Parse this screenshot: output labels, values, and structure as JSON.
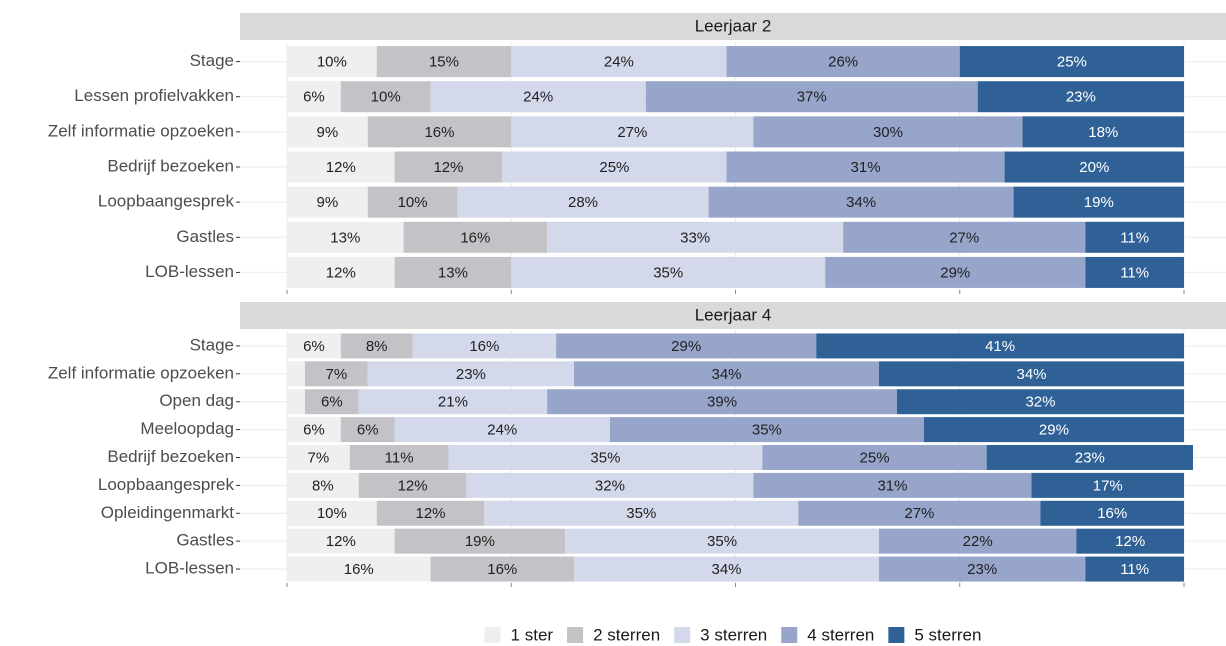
{
  "chart_data": {
    "type": "bar",
    "stacked": true,
    "orientation": "horizontal",
    "xlim": [
      0,
      100
    ],
    "xticks": [
      0,
      25,
      50,
      75,
      100
    ],
    "grid": true,
    "legend": [
      {
        "name": "1 ster",
        "color": "#efefef",
        "text_color": "#222222"
      },
      {
        "name": "2 sterren",
        "color": "#c3c2c6",
        "text_color": "#222222"
      },
      {
        "name": "3 sterren",
        "color": "#d3d9ea",
        "text_color": "#222222"
      },
      {
        "name": "4 sterren",
        "color": "#97a5ca",
        "text_color": "#222222"
      },
      {
        "name": "5 sterren",
        "color": "#2f6197",
        "text_color": "#ffffff"
      }
    ],
    "panels": [
      {
        "title": "Leerjaar 2",
        "categories": [
          "Stage",
          "Lessen profielvakken",
          "Zelf informatie opzoeken",
          "Bedrijf bezoeken",
          "Loopbaangesprek",
          "Gastles",
          "LOB-lessen"
        ],
        "series": [
          {
            "values": [
              10,
              6,
              9,
              12,
              9,
              13,
              12
            ],
            "value_labels": [
              "10%",
              "6%",
              "9%",
              "12%",
              "9%",
              "13%",
              "12%"
            ]
          },
          {
            "values": [
              15,
              10,
              16,
              12,
              10,
              16,
              13
            ],
            "value_labels": [
              "15%",
              "10%",
              "16%",
              "12%",
              "10%",
              "16%",
              "13%"
            ]
          },
          {
            "values": [
              24,
              24,
              27,
              25,
              28,
              33,
              35
            ],
            "value_labels": [
              "24%",
              "24%",
              "27%",
              "25%",
              "28%",
              "33%",
              "35%"
            ]
          },
          {
            "values": [
              26,
              37,
              30,
              31,
              34,
              27,
              29
            ],
            "value_labels": [
              "26%",
              "37%",
              "30%",
              "31%",
              "34%",
              "27%",
              "29%"
            ]
          },
          {
            "values": [
              25,
              23,
              18,
              20,
              19,
              11,
              11
            ],
            "value_labels": [
              "25%",
              "23%",
              "18%",
              "20%",
              "19%",
              "11%",
              "11%"
            ]
          }
        ]
      },
      {
        "title": "Leerjaar 4",
        "categories": [
          "Stage",
          "Zelf informatie opzoeken",
          "Open dag",
          "Meeloopdag",
          "Bedrijf bezoeken",
          "Loopbaangesprek",
          "Opleidingenmarkt",
          "Gastles",
          "LOB-lessen"
        ],
        "series": [
          {
            "values": [
              6,
              2,
              2,
              6,
              7,
              8,
              10,
              12,
              16
            ],
            "value_labels": [
              "6%",
              null,
              null,
              "6%",
              "7%",
              "8%",
              "10%",
              "12%",
              "16%"
            ]
          },
          {
            "values": [
              8,
              7,
              6,
              6,
              11,
              12,
              12,
              19,
              16
            ],
            "value_labels": [
              "8%",
              "7%",
              "6%",
              "6%",
              "11%",
              "12%",
              "12%",
              "19%",
              "16%"
            ]
          },
          {
            "values": [
              16,
              23,
              21,
              24,
              35,
              32,
              35,
              35,
              34
            ],
            "value_labels": [
              "16%",
              "23%",
              "21%",
              "24%",
              "35%",
              "32%",
              "35%",
              "35%",
              "34%"
            ]
          },
          {
            "values": [
              29,
              34,
              39,
              35,
              25,
              31,
              27,
              22,
              23
            ],
            "value_labels": [
              "29%",
              "34%",
              "39%",
              "35%",
              "25%",
              "31%",
              "27%",
              "22%",
              "23%"
            ]
          },
          {
            "values": [
              41,
              34,
              32,
              29,
              23,
              17,
              16,
              12,
              11
            ],
            "value_labels": [
              "41%",
              "34%",
              "32%",
              "29%",
              "23%",
              "17%",
              "16%",
              "12%",
              "11%"
            ]
          }
        ]
      }
    ]
  }
}
